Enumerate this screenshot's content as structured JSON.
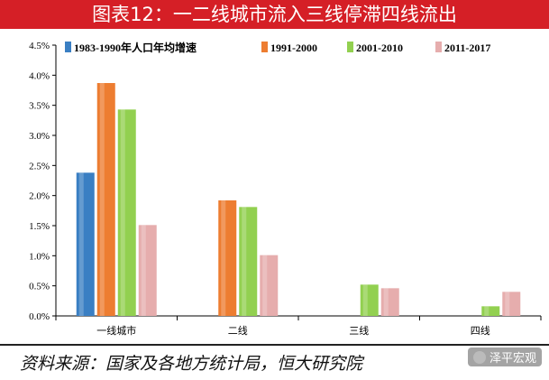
{
  "title": "图表12：一二线城市流入三线停滞四线流出",
  "source": "资料来源：国家及各地方统计局，恒大研究院",
  "watermark": "泽平宏观",
  "chart_data": {
    "type": "bar",
    "categories": [
      "一线城市",
      "二线",
      "三线",
      "四线"
    ],
    "series": [
      {
        "name": "1983-1990年人口年均增速",
        "color": "#3a7fc3",
        "values": [
          2.38,
          null,
          null,
          null
        ]
      },
      {
        "name": "1991-2000",
        "color": "#ed7d31",
        "values": [
          3.87,
          1.92,
          null,
          null
        ]
      },
      {
        "name": "2001-2010",
        "color": "#92d050",
        "values": [
          3.43,
          1.81,
          0.52,
          0.16
        ]
      },
      {
        "name": "2011-2017",
        "color": "#e6adad",
        "values": [
          1.51,
          1.01,
          0.46,
          0.4
        ]
      }
    ],
    "ylim": [
      0,
      4.5
    ],
    "yticks": [
      "0.0%",
      "0.5%",
      "1.0%",
      "1.5%",
      "2.0%",
      "2.5%",
      "3.0%",
      "3.5%",
      "4.0%",
      "4.5%"
    ],
    "legend_position": "top",
    "grid": false
  }
}
